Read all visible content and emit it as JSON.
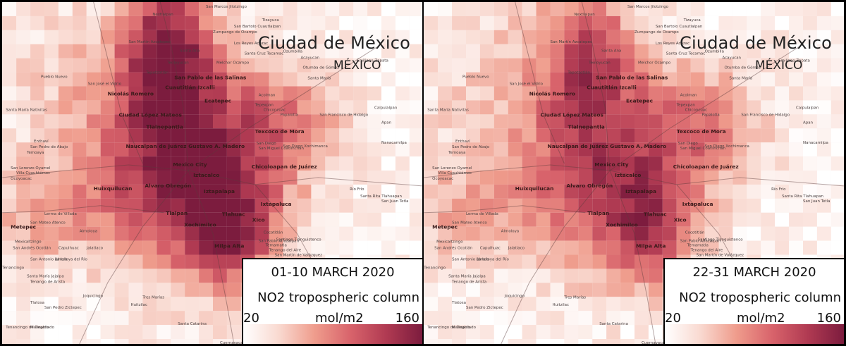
{
  "map": {
    "city_title": "Ciudad de México",
    "country_title": "MÉXICO",
    "scale_colors": [
      "#ffffff",
      "#f9d9d0",
      "#ef9c8c",
      "#d8636b",
      "#b03a52",
      "#7c1c3e"
    ],
    "border_color": "#000000",
    "places": [
      {
        "name": "Nextlalpan",
        "bold": false
      },
      {
        "name": "San Marcos Jilotzingo",
        "bold": false
      },
      {
        "name": "Tizayuca",
        "bold": false
      },
      {
        "name": "San Bartolo Cuautlalpan",
        "bold": false
      },
      {
        "name": "Zumpango de Ocampo",
        "bold": false
      },
      {
        "name": "Los Reyes Acozac",
        "bold": false
      },
      {
        "name": "Santa Cruz Tecamac",
        "bold": false
      },
      {
        "name": "San Martín Azcatepec",
        "bold": false
      },
      {
        "name": "Santa Ana",
        "bold": false
      },
      {
        "name": "Ozumbilla",
        "bold": false
      },
      {
        "name": "Teoloyucan",
        "bold": false
      },
      {
        "name": "Tepotzotlán",
        "bold": false
      },
      {
        "name": "Melchor Ocampo",
        "bold": false
      },
      {
        "name": "Acayucan",
        "bold": false
      },
      {
        "name": "Otumba de Gómez",
        "bold": false
      },
      {
        "name": "Emiliano Zapata",
        "bold": false
      },
      {
        "name": "Santa María",
        "bold": false
      },
      {
        "name": "San Pablo de las Salinas",
        "bold": true
      },
      {
        "name": "Pueblo Nuevo",
        "bold": false
      },
      {
        "name": "San José el Vidrio",
        "bold": false
      },
      {
        "name": "Cuautitlán Izcalli",
        "bold": true
      },
      {
        "name": "Nicolás Romero",
        "bold": true
      },
      {
        "name": "Acolman",
        "bold": false
      },
      {
        "name": "Tepexpan",
        "bold": false
      },
      {
        "name": "Ecatepec",
        "bold": true
      },
      {
        "name": "Calpulalpan",
        "bold": false
      },
      {
        "name": "Santa María Nativitas",
        "bold": false
      },
      {
        "name": "Ciudad López Mateos",
        "bold": true
      },
      {
        "name": "Chiconcuac",
        "bold": false
      },
      {
        "name": "Papalotla",
        "bold": false
      },
      {
        "name": "San Francisco de Hidalgo",
        "bold": false
      },
      {
        "name": "Tlalnepantla",
        "bold": true
      },
      {
        "name": "Texcoco de Mora",
        "bold": true
      },
      {
        "name": "Apan",
        "bold": false
      },
      {
        "name": "Enthaví",
        "bold": false
      },
      {
        "name": "San Pedro de Abajo",
        "bold": false
      },
      {
        "name": "Temoaya",
        "bold": false
      },
      {
        "name": "Naucalpan de Juárez",
        "bold": true
      },
      {
        "name": "Gustavo A. Madero",
        "bold": true
      },
      {
        "name": "San Diego",
        "bold": false
      },
      {
        "name": "San Miguel Coatlinchan",
        "bold": false
      },
      {
        "name": "San Diego Xochimanca",
        "bold": false
      },
      {
        "name": "Nanacamilpa",
        "bold": false
      },
      {
        "name": "San Lorenzo Oyamel",
        "bold": false
      },
      {
        "name": "Villa Cuauhtémoc",
        "bold": false
      },
      {
        "name": "Ocoyoacac",
        "bold": false
      },
      {
        "name": "Mexico City",
        "bold": true
      },
      {
        "name": "Iztacalco",
        "bold": true
      },
      {
        "name": "Chicoloapan de Juárez",
        "bold": true
      },
      {
        "name": "Huixquilucan",
        "bold": true
      },
      {
        "name": "Alvaro Obregón",
        "bold": true
      },
      {
        "name": "Iztapalapa",
        "bold": true
      },
      {
        "name": "Río Frío",
        "bold": false
      },
      {
        "name": "Santa Rita Tlahuapan",
        "bold": false
      },
      {
        "name": "San Juan Tetla",
        "bold": false
      },
      {
        "name": "Ixtapaluca",
        "bold": true
      },
      {
        "name": "Lerma de Villada",
        "bold": false
      },
      {
        "name": "Metepec",
        "bold": true
      },
      {
        "name": "San Mateo Atenco",
        "bold": false
      },
      {
        "name": "Tlalpan",
        "bold": true
      },
      {
        "name": "Tlahuac",
        "bold": true
      },
      {
        "name": "Xochimilco",
        "bold": true
      },
      {
        "name": "Xico",
        "bold": true
      },
      {
        "name": "Almoloya",
        "bold": false
      },
      {
        "name": "Cocotitlán",
        "bold": false
      },
      {
        "name": "Santiago Tianguistenco",
        "bold": false
      },
      {
        "name": "Mexicaltzingo",
        "bold": false
      },
      {
        "name": "San Andrés Ocotlán",
        "bold": false
      },
      {
        "name": "Capulhuac",
        "bold": false
      },
      {
        "name": "Jalatlaco",
        "bold": false
      },
      {
        "name": "Milpa Alta",
        "bold": true
      },
      {
        "name": "San Pablo Atlazalpan",
        "bold": false
      },
      {
        "name": "Temamatla",
        "bold": false
      },
      {
        "name": "Tenango del Aire",
        "bold": false
      },
      {
        "name": "San Martín de Valázquez",
        "bold": false
      },
      {
        "name": "San Antonio La Isla",
        "bold": false
      },
      {
        "name": "Almoloya del Río",
        "bold": false
      },
      {
        "name": "Tenancingo",
        "bold": false
      },
      {
        "name": "Santa María Jajalpa",
        "bold": false
      },
      {
        "name": "Tenango de Arista",
        "bold": false
      },
      {
        "name": "Tres Marías",
        "bold": false
      },
      {
        "name": "Huitzilac",
        "bold": false
      },
      {
        "name": "Tepoztlán",
        "bold": false
      },
      {
        "name": "Tlatosa",
        "bold": false
      },
      {
        "name": "San Pedro Zictepec",
        "bold": false
      },
      {
        "name": "Joquicingo",
        "bold": false
      },
      {
        "name": "Santa Catarina",
        "bold": false
      },
      {
        "name": "Malinalco",
        "bold": false
      },
      {
        "name": "Tenancingo de Degollado",
        "bold": false
      },
      {
        "name": "Cuernavaca",
        "bold": false
      }
    ]
  },
  "panels": [
    {
      "period": "01-10 MARCH 2020",
      "variable": "NO2 tropospheric column",
      "unit": "mol/m2",
      "min": "20",
      "max": "160"
    },
    {
      "period": "22-31 MARCH 2020",
      "variable": "NO2 tropospheric column",
      "unit": "mol/m2",
      "min": "20",
      "max": "160"
    }
  ]
}
